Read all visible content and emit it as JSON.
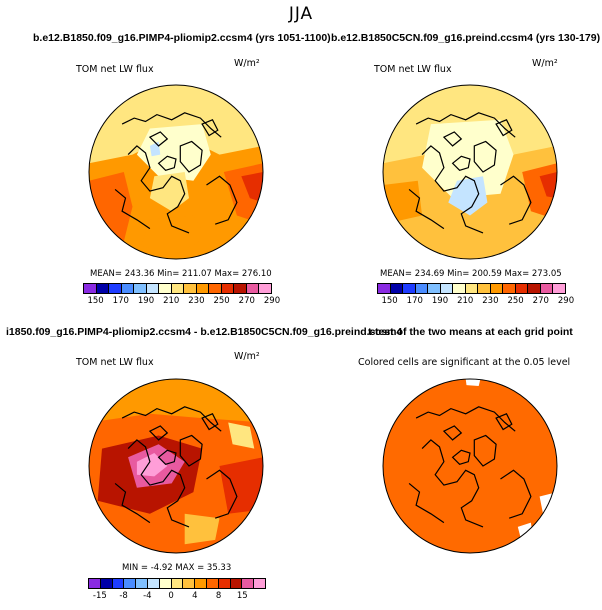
{
  "page_title": "JJA",
  "colors": {
    "c150": "#8a2be2",
    "c160": "#0000a8",
    "c170": "#1e3cff",
    "c180": "#4a8cff",
    "c190": "#7fbfff",
    "c200": "#c4e4ff",
    "c210": "#ffffcc",
    "c220": "#ffe680",
    "c230": "#ffc13d",
    "c240": "#ff9900",
    "c250": "#ff6600",
    "c260": "#e62e00",
    "c270": "#b81400",
    "c280": "#e85aa0",
    "c290": "#ff9ed8",
    "land_outline": "#000000",
    "signif": "#ff6a00"
  },
  "chart_data": [
    {
      "type": "heatmap",
      "title": "b.e12.B1850.f09_g16.PIMP4-pliomip2.ccsm4 (yrs 1051-1100)",
      "variable": "TOM net LW flux",
      "units": "W/m²",
      "stats_text": "MEAN= 243.36   Min= 211.07   Max= 276.10",
      "mean": 243.36,
      "min": 211.07,
      "max": 276.1,
      "colorbar_levels": [
        150,
        160,
        170,
        180,
        190,
        200,
        210,
        220,
        230,
        240,
        250,
        260,
        270,
        280,
        290
      ],
      "colorbar_ticks": [
        "150",
        "170",
        "190",
        "210",
        "230",
        "250",
        "270",
        "290"
      ],
      "projection": "north polar stereographic"
    },
    {
      "type": "heatmap",
      "title": "b.e12.B1850C5CN.f09_g16.preind.ccsm4 (yrs 130-179)",
      "variable": "TOM net LW flux",
      "units": "W/m²",
      "stats_text": "MEAN= 234.69   Min= 200.59   Max= 273.05",
      "mean": 234.69,
      "min": 200.59,
      "max": 273.05,
      "colorbar_levels": [
        150,
        160,
        170,
        180,
        190,
        200,
        210,
        220,
        230,
        240,
        250,
        260,
        270,
        280,
        290
      ],
      "colorbar_ticks": [
        "150",
        "170",
        "190",
        "210",
        "230",
        "250",
        "270",
        "290"
      ],
      "projection": "north polar stereographic"
    },
    {
      "type": "heatmap",
      "title": "i1850.f09_g16.PIMP4-pliomip2.ccsm4 - b.e12.B1850C5CN.f09_g16.preind.ccsm4",
      "variable": "TOM net LW flux",
      "units": "W/m²",
      "stats_text": "MIN =   -4.92  MAX =   35.33",
      "min": -4.92,
      "max": 35.33,
      "colorbar_levels": [
        -20,
        -15,
        -10,
        -8,
        -6,
        -4,
        -2,
        0,
        2,
        4,
        6,
        8,
        10,
        15,
        20
      ],
      "colorbar_ticks": [
        "-15",
        "-8",
        "-4",
        "0",
        "4",
        "8",
        "15"
      ],
      "projection": "north polar stereographic"
    },
    {
      "type": "heatmap",
      "title": "t-test of the two means at each grid point",
      "subtitle": "Colored cells are significant at the 0.05 level",
      "significance_level": 0.05,
      "projection": "north polar stereographic"
    }
  ]
}
